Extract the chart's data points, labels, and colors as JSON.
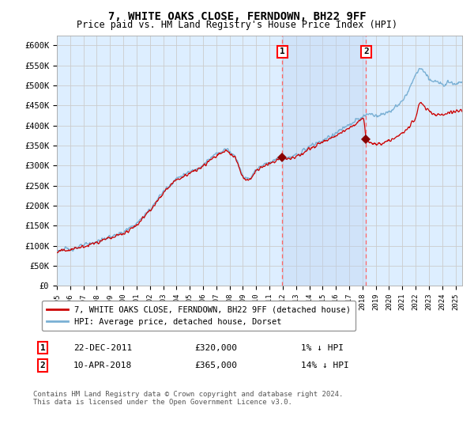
{
  "title": "7, WHITE OAKS CLOSE, FERNDOWN, BH22 9FF",
  "subtitle": "Price paid vs. HM Land Registry's House Price Index (HPI)",
  "ylim": [
    0,
    625000
  ],
  "yticks": [
    0,
    50000,
    100000,
    150000,
    200000,
    250000,
    300000,
    350000,
    400000,
    450000,
    500000,
    550000,
    600000
  ],
  "ytick_labels": [
    "£0",
    "£50K",
    "£100K",
    "£150K",
    "£200K",
    "£250K",
    "£300K",
    "£350K",
    "£400K",
    "£450K",
    "£500K",
    "£550K",
    "£600K"
  ],
  "background_color": "#ffffff",
  "plot_bg_color": "#ddeeff",
  "grid_color": "#cccccc",
  "hpi_color": "#7ab0d4",
  "price_color": "#cc0000",
  "shade_color": "#c8d8f0",
  "marker1_date": 2011.97,
  "marker1_price": 320000,
  "marker1_label": "1",
  "marker2_date": 2018.27,
  "marker2_price": 365000,
  "marker2_label": "2",
  "legend_line1": "7, WHITE OAKS CLOSE, FERNDOWN, BH22 9FF (detached house)",
  "legend_line2": "HPI: Average price, detached house, Dorset",
  "footer": "Contains HM Land Registry data © Crown copyright and database right 2024.\nThis data is licensed under the Open Government Licence v3.0.",
  "xmin": 1995.0,
  "xmax": 2025.5
}
